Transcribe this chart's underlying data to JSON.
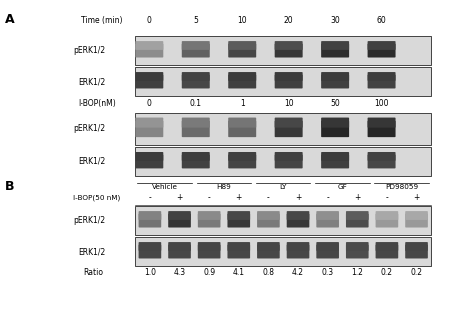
{
  "fig_width": 4.74,
  "fig_height": 3.16,
  "panel_A": {
    "label": "A",
    "time_label": "Time (min)",
    "time_values": [
      "0",
      "5",
      "10",
      "20",
      "30",
      "60"
    ],
    "ibop_label": "I-BOP(nM)",
    "ibop_values": [
      "0",
      "0.1",
      "1",
      "10",
      "50",
      "100"
    ],
    "row1_label": "pERK1/2",
    "row2_label": "ERK1/2",
    "row3_label": "pERK1/2",
    "row4_label": "ERK1/2"
  },
  "panel_B": {
    "label": "B",
    "groups": [
      "Vehicle",
      "H89",
      "LY",
      "GF",
      "PD98059"
    ],
    "ibop_label": "I-BOP(50 nM)",
    "minus_plus": [
      "-",
      "+"
    ],
    "row1_label": "pERK1/2",
    "row2_label": "ERK1/2",
    "ratio_label": "Ratio",
    "ratios": [
      "1.0",
      "4.3",
      "0.9",
      "4.1",
      "0.8",
      "4.2",
      "0.3",
      "1.2",
      "0.2",
      "0.2"
    ]
  },
  "bg_color": "#f0f0f0",
  "band_color_dark": "#404040",
  "band_color_light": "#909090",
  "box_color": "#d8d8d8"
}
